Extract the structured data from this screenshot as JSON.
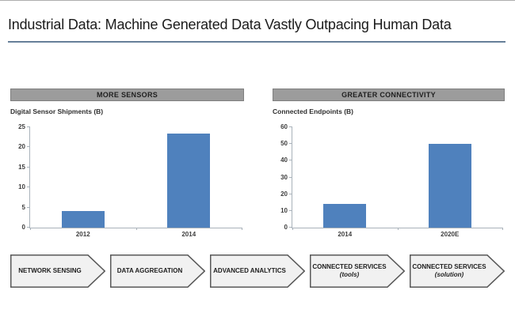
{
  "page": {
    "title": "Industrial Data: Machine Generated Data Vastly Outpacing Human Data"
  },
  "chart_data": [
    {
      "type": "bar",
      "title": "MORE SENSORS",
      "subtitle": "Digital Sensor Shipments (B)",
      "categories": [
        "2012",
        "2014"
      ],
      "values": [
        4.2,
        23.5
      ],
      "ylim": [
        0,
        25
      ],
      "ytick_step": 5,
      "xlabel": "",
      "ylabel": "",
      "grid": false,
      "legend": false
    },
    {
      "type": "bar",
      "title": "GREATER CONNECTIVITY",
      "subtitle": "Connected Endpoints (B)",
      "categories": [
        "2014",
        "2020E"
      ],
      "values": [
        14,
        50
      ],
      "ylim": [
        0,
        60
      ],
      "ytick_step": 10,
      "xlabel": "",
      "ylabel": "",
      "grid": false,
      "legend": false
    }
  ],
  "flow": {
    "steps": [
      {
        "line1": "NETWORK SENSING",
        "line2": ""
      },
      {
        "line1": "DATA AGGREGATION",
        "line2": ""
      },
      {
        "line1": "ADVANCED ANALYTICS",
        "line2": ""
      },
      {
        "line1": "CONNECTED SERVICES",
        "line2": "(tools)"
      },
      {
        "line1": "CONNECTED SERVICES",
        "line2": "(solution)"
      }
    ]
  },
  "colors": {
    "bar": "#4f81bd",
    "panel_header_bg": "#9c9c9c",
    "panel_header_border": "#7f7f7f",
    "title_rule": "#44607c",
    "arrow_fill": "#f1f1f1",
    "arrow_border": "#595959",
    "axis": "#a9b2ba"
  }
}
